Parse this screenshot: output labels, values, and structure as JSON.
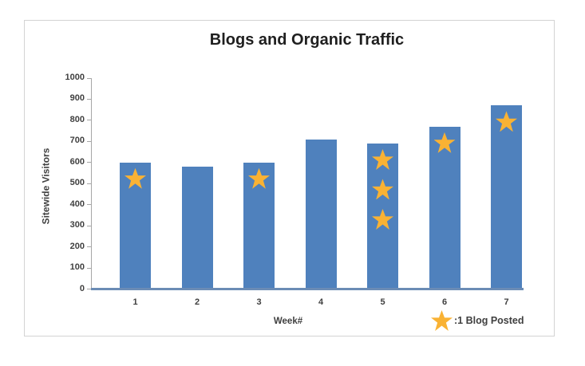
{
  "chart_data": {
    "type": "bar",
    "title": "Blogs and Organic Traffic",
    "xlabel": "Week#",
    "ylabel": "Sitewide Visitors",
    "categories": [
      "1",
      "2",
      "3",
      "4",
      "5",
      "6",
      "7"
    ],
    "series": [
      {
        "name": "Sitewide Visitors",
        "values": [
          600,
          580,
          600,
          710,
          690,
          770,
          870
        ]
      },
      {
        "name": "Blogs Posted (stars)",
        "values": [
          1,
          0,
          1,
          0,
          3,
          1,
          1
        ]
      }
    ],
    "ylim": [
      0,
      1000
    ],
    "ytick_step": 100,
    "yticks": [
      "1000",
      "900",
      "800",
      "700",
      "600",
      "500",
      "400",
      "300",
      "200",
      "100",
      "0"
    ],
    "grid": false,
    "legend": {
      "symbol": "star-icon",
      "label": ":1 Blog Posted",
      "position": "bottom-right"
    },
    "colors": {
      "bar": "#4F81BD",
      "star": "#F9B234",
      "axis": "#a6a6a6",
      "baseline": "#6b8cb5",
      "title_text": "#1f1f1f",
      "label_text": "#3f3f3f"
    }
  }
}
